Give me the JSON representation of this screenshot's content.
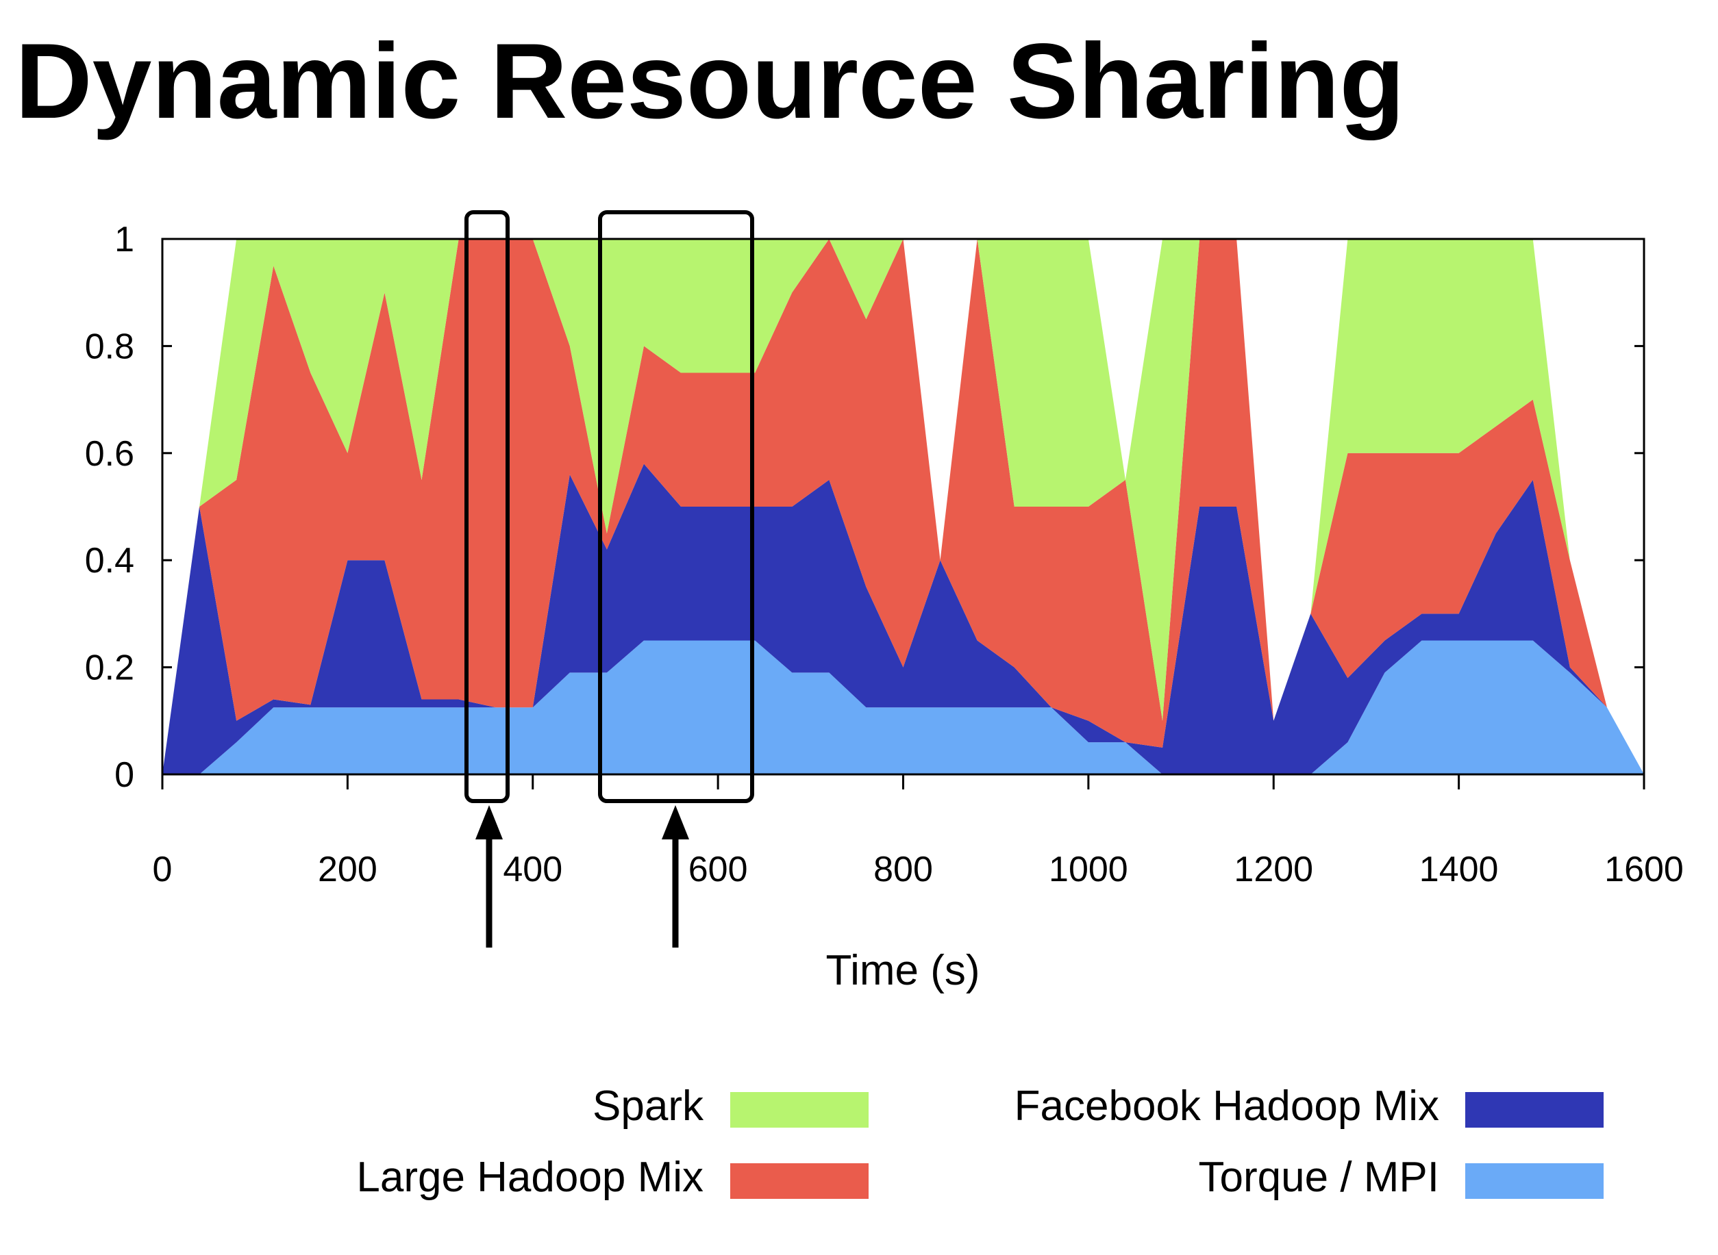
{
  "chart_data": {
    "type": "stacked-area",
    "title": "Dynamic Resource Sharing",
    "x_label": "Time (s)",
    "x": [
      0,
      40,
      80,
      120,
      160,
      200,
      240,
      280,
      320,
      360,
      400,
      440,
      480,
      520,
      560,
      600,
      640,
      680,
      720,
      760,
      800,
      840,
      880,
      920,
      960,
      1000,
      1040,
      1080,
      1120,
      1160,
      1200,
      1240,
      1280,
      1320,
      1360,
      1400,
      1440,
      1480,
      1520,
      1560,
      1600
    ],
    "series": [
      {
        "name": "Spark",
        "color": "#b7f46f",
        "values": [
          0,
          0,
          0.45,
          0.05,
          0.25,
          0.4,
          0.1,
          0.45,
          0,
          0,
          0,
          0.2,
          0.55,
          0.2,
          0.25,
          0.25,
          0.25,
          0.1,
          0,
          0.15,
          0,
          0,
          0,
          0.5,
          0.5,
          0.5,
          0,
          0.9,
          0,
          0,
          0,
          0,
          0.4,
          0.4,
          0.4,
          0.4,
          0.35,
          0.3,
          0,
          0,
          0
        ]
      },
      {
        "name": "Large Hadoop Mix",
        "color": "#ea5c4c",
        "values": [
          0,
          0,
          0.45,
          0.81,
          0.62,
          0.2,
          0.5,
          0.41,
          0.86,
          0.875,
          0.875,
          0.24,
          0.03,
          0.22,
          0.25,
          0.25,
          0.25,
          0.4,
          0.45,
          0.5,
          0.8,
          0,
          0.75,
          0.3,
          0.375,
          0.4,
          0.49,
          0.05,
          0.5,
          0.5,
          0,
          0,
          0.42,
          0.35,
          0.3,
          0.3,
          0.2,
          0.15,
          0.2,
          0,
          0
        ]
      },
      {
        "name": "Facebook Hadoop Mix",
        "color": "#2f37b4",
        "values": [
          0,
          0.5,
          0.04,
          0.015,
          0.005,
          0.275,
          0.275,
          0.015,
          0.015,
          0,
          0,
          0.37,
          0.23,
          0.33,
          0.25,
          0.25,
          0.25,
          0.31,
          0.36,
          0.225,
          0.075,
          0.275,
          0.125,
          0.075,
          0,
          0.04,
          0,
          0.05,
          0.5,
          0.5,
          0.1,
          0.3,
          0.12,
          0.06,
          0.05,
          0.05,
          0.2,
          0.3,
          0.01,
          0,
          0
        ]
      },
      {
        "name": "Torque / MPI",
        "color": "#6aaaf7",
        "values": [
          0,
          0,
          0.06,
          0.125,
          0.125,
          0.125,
          0.125,
          0.125,
          0.125,
          0.125,
          0.125,
          0.19,
          0.19,
          0.25,
          0.25,
          0.25,
          0.25,
          0.19,
          0.19,
          0.125,
          0.125,
          0.125,
          0.125,
          0.125,
          0.125,
          0.06,
          0.06,
          0,
          0,
          0,
          0,
          0,
          0.06,
          0.19,
          0.25,
          0.25,
          0.25,
          0.25,
          0.19,
          0.125,
          0
        ]
      }
    ],
    "xlim": [
      0,
      1600
    ],
    "xticks": [
      0,
      200,
      400,
      600,
      800,
      1000,
      1200,
      1400,
      1600
    ],
    "ylim": [
      0,
      1
    ],
    "yticks": [
      0,
      0.2,
      0.4,
      0.6,
      0.8,
      1
    ]
  }
}
